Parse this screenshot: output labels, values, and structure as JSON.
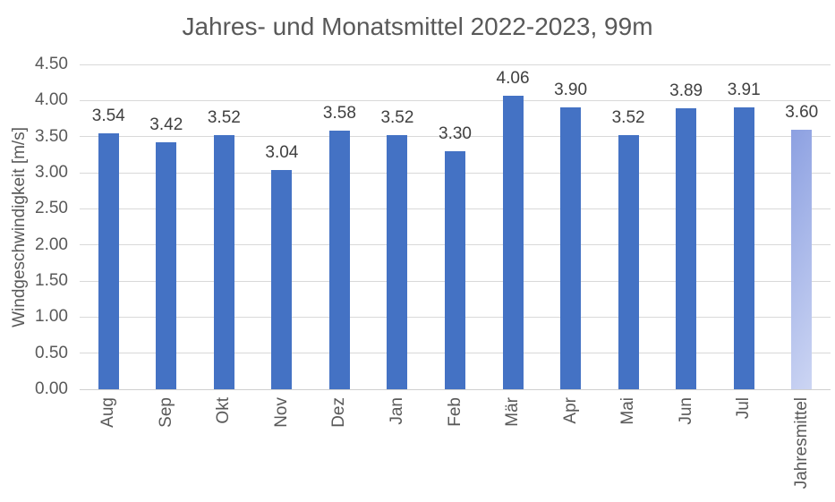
{
  "chart_data": {
    "type": "bar",
    "title": "Jahres- und Monatsmittel 2022-2023, 99m",
    "ylabel": "Windgeschwindigkeit [m/s]",
    "xlabel": "",
    "categories": [
      "Aug",
      "Sep",
      "Okt",
      "Nov",
      "Dez",
      "Jan",
      "Feb",
      "Mär",
      "Apr",
      "Mai",
      "Jun",
      "Jul",
      "Jahresmittel"
    ],
    "values": [
      3.54,
      3.42,
      3.52,
      3.04,
      3.58,
      3.52,
      3.3,
      4.06,
      3.9,
      3.52,
      3.89,
      3.91,
      3.6
    ],
    "data_labels": [
      "3.54",
      "3.42",
      "3.52",
      "3.04",
      "3.58",
      "3.52",
      "3.30",
      "4.06",
      "3.90",
      "3.52",
      "3.89",
      "3.91",
      "3.60"
    ],
    "yticks": [
      "0.00",
      "0.50",
      "1.00",
      "1.50",
      "2.00",
      "2.50",
      "3.00",
      "3.50",
      "4.00",
      "4.50"
    ],
    "ytick_values": [
      0,
      0.5,
      1.0,
      1.5,
      2.0,
      2.5,
      3.0,
      3.5,
      4.0,
      4.5
    ],
    "ylim": [
      0,
      4.5
    ],
    "grid": true,
    "legend": false,
    "annual_mean_category": "Jahresmittel",
    "colors": {
      "bar": "#4472C4",
      "annual_bar_gradient_start": "#8CA0E1",
      "annual_bar_gradient_end": "#CCD5F3",
      "gridline": "#D9D9D9",
      "title_text": "#595959",
      "axis_text": "#595959",
      "data_label_text": "#404040"
    }
  }
}
